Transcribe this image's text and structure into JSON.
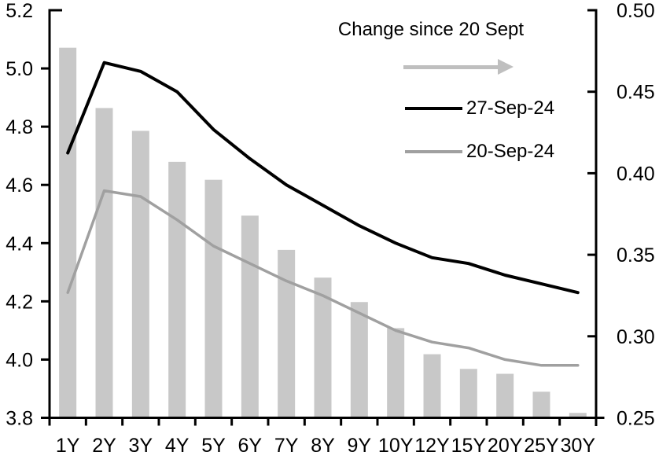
{
  "chart_data": {
    "type": "combo",
    "title": "",
    "categories": [
      "1Y",
      "2Y",
      "3Y",
      "4Y",
      "5Y",
      "6Y",
      "7Y",
      "8Y",
      "9Y",
      "10Y",
      "12Y",
      "15Y",
      "20Y",
      "25Y",
      "30Y"
    ],
    "series": [
      {
        "name": "27-Sep-24",
        "type": "line",
        "axis": "left",
        "color": "#000000",
        "stroke_width": 4,
        "values": [
          4.71,
          5.02,
          4.99,
          4.92,
          4.79,
          4.69,
          4.6,
          4.53,
          4.46,
          4.4,
          4.35,
          4.33,
          4.29,
          4.26,
          4.23
        ]
      },
      {
        "name": "20-Sep-24",
        "type": "line",
        "axis": "left",
        "color": "#a0a0a0",
        "stroke_width": 3.5,
        "values": [
          4.23,
          4.58,
          4.56,
          4.48,
          4.39,
          4.33,
          4.27,
          4.22,
          4.16,
          4.1,
          4.06,
          4.04,
          4.0,
          3.98,
          3.98
        ]
      },
      {
        "name": "Change since 20 Sept",
        "type": "bar",
        "axis": "right",
        "color": "#c8c8c8",
        "values": [
          0.477,
          0.44,
          0.426,
          0.407,
          0.396,
          0.374,
          0.353,
          0.336,
          0.321,
          0.305,
          0.289,
          0.28,
          0.277,
          0.266,
          0.253
        ]
      }
    ],
    "left_axis": {
      "min": 3.8,
      "max": 5.2,
      "step": 0.2,
      "tick_labels": [
        "5.2",
        "5.0",
        "4.8",
        "4.6",
        "4.4",
        "4.2",
        "4.0",
        "3.8"
      ]
    },
    "right_axis": {
      "min": 0.25,
      "max": 0.5,
      "step": 0.05,
      "tick_labels": [
        "0.50",
        "0.45",
        "0.40",
        "0.35",
        "0.30",
        "0.25"
      ]
    },
    "grid": false,
    "axis_color": "#000000",
    "legend_position": "top-center-inside",
    "legend": {
      "title": "Change since 20 Sept",
      "arrow_icon_color": "#bfbfbf",
      "entries": [
        "27-Sep-24",
        "20-Sep-24"
      ]
    }
  }
}
